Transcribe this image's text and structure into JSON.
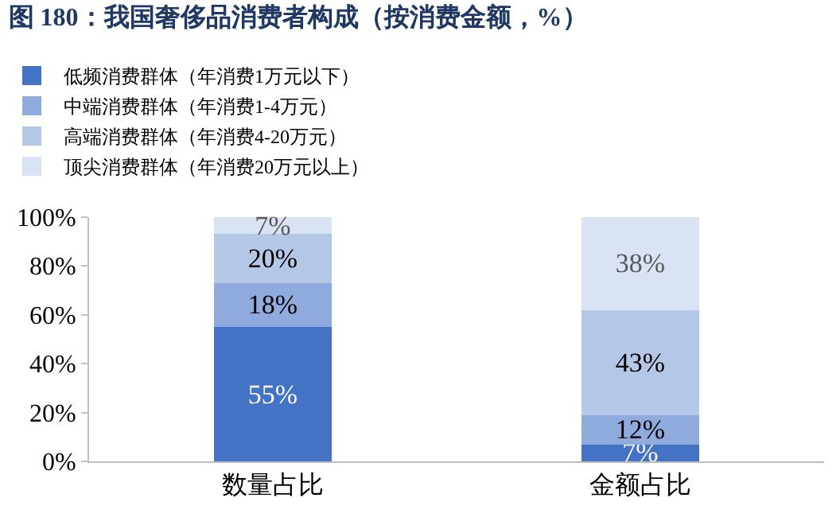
{
  "chart_data": {
    "type": "bar",
    "stacked": true,
    "title": "图 180：我国奢侈品消费者构成（按消费金额，%）",
    "categories": [
      "数量占比",
      "金额占比"
    ],
    "series": [
      {
        "name": "低频消费群体（年消费1万元以下）",
        "color": "#4472c4",
        "values": [
          55,
          7
        ],
        "value_labels": [
          "55%",
          "7%"
        ]
      },
      {
        "name": "中端消费群体（年消费1-4万元）",
        "color": "#8faadc",
        "values": [
          18,
          12
        ],
        "value_labels": [
          "18%",
          "12%"
        ]
      },
      {
        "name": "高端消费群体（年消费4-20万元）",
        "color": "#b4c7e7",
        "values": [
          20,
          43
        ],
        "value_labels": [
          "20%",
          "43%"
        ]
      },
      {
        "name": "顶尖消费群体（年消费20万元以上）",
        "color": "#dae3f3",
        "values": [
          7,
          38
        ],
        "value_labels": [
          "7%",
          "38%"
        ]
      }
    ],
    "ylim": [
      0,
      100
    ],
    "yticks": [
      {
        "value": 0,
        "label": "0%"
      },
      {
        "value": 20,
        "label": "20%"
      },
      {
        "value": 40,
        "label": "40%"
      },
      {
        "value": 60,
        "label": "60%"
      },
      {
        "value": 80,
        "label": "80%"
      },
      {
        "value": 100,
        "label": "100%"
      }
    ],
    "legend": "top"
  }
}
